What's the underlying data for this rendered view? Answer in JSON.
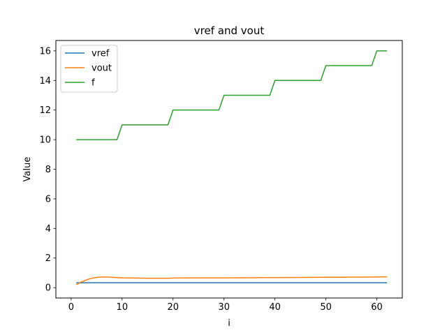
{
  "chart_data": {
    "type": "line",
    "title": "vref and vout",
    "xlabel": "i",
    "ylabel": "Value",
    "xlim": [
      -3,
      65
    ],
    "ylim": [
      -0.7,
      16.7
    ],
    "xticks": [
      0,
      10,
      20,
      30,
      40,
      50,
      60
    ],
    "yticks": [
      0,
      2,
      4,
      6,
      8,
      10,
      12,
      14,
      16
    ],
    "grid": false,
    "legend_position": "top-left",
    "series": [
      {
        "name": "vref",
        "color": "#1f77b4",
        "x": [
          1,
          62
        ],
        "y": [
          0.33,
          0.33
        ]
      },
      {
        "name": "vout",
        "color": "#ff7f0e",
        "x": [
          1,
          2,
          3,
          4,
          5,
          6,
          7,
          8,
          9,
          10,
          12,
          15,
          19,
          20,
          25,
          30,
          35,
          40,
          45,
          50,
          55,
          60,
          62
        ],
        "y": [
          0.2,
          0.38,
          0.52,
          0.63,
          0.69,
          0.72,
          0.72,
          0.7,
          0.68,
          0.66,
          0.65,
          0.64,
          0.64,
          0.65,
          0.66,
          0.66,
          0.67,
          0.68,
          0.69,
          0.7,
          0.71,
          0.72,
          0.73
        ]
      },
      {
        "name": "f",
        "color": "#2ca02c",
        "x": [
          1,
          9,
          10,
          19,
          20,
          29,
          30,
          39,
          40,
          49,
          50,
          59,
          60,
          62
        ],
        "y": [
          10,
          10,
          11,
          11,
          12,
          12,
          13,
          13,
          14,
          14,
          15,
          15,
          16,
          16
        ]
      }
    ]
  }
}
